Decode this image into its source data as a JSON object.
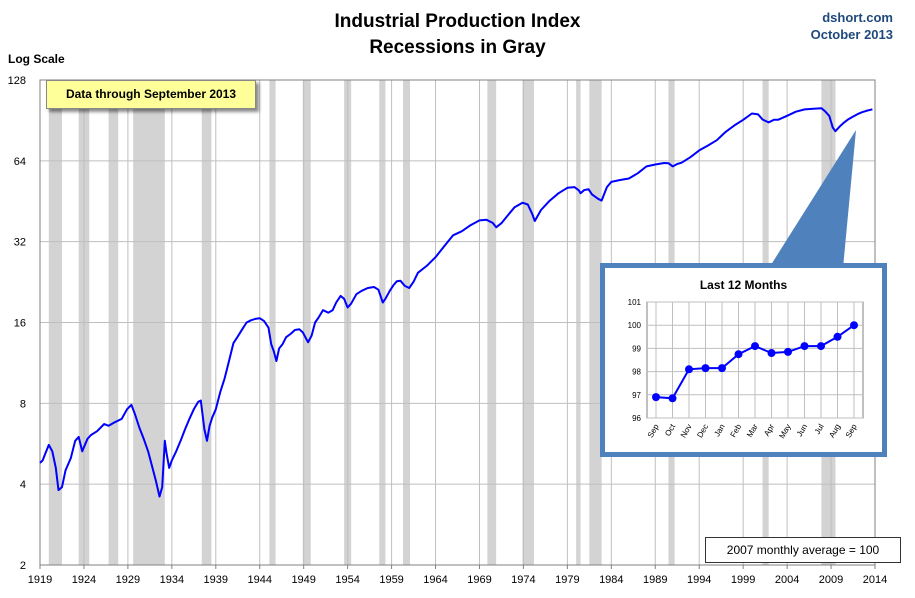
{
  "header": {
    "title_line1": "Industrial Production Index",
    "title_line2": "Recessions in Gray",
    "credit_site": "dshort.com",
    "credit_date": "October 2013"
  },
  "notes": {
    "data_through": "Data through September 2013",
    "baseline": "2007 monthly average = 100"
  },
  "colors": {
    "line": "#0000ff",
    "recession": "#d3d3d3",
    "grid": "#bfbfbf",
    "inset_border": "#4f81bd"
  },
  "chart_data": [
    {
      "type": "line",
      "title": "Industrial Production Index",
      "subtitle": "Recessions in Gray",
      "ylabel": "Log Scale",
      "y_scale": "log2",
      "ylim": [
        2,
        128
      ],
      "y_ticks": [
        "2",
        "4",
        "8",
        "16",
        "32",
        "64",
        "128"
      ],
      "xlim": [
        1919.0,
        2014.0
      ],
      "x_ticks": [
        "1919",
        "1924",
        "1929",
        "1934",
        "1939",
        "1944",
        "1949",
        "1954",
        "1959",
        "1964",
        "1969",
        "1974",
        "1979",
        "1984",
        "1989",
        "1994",
        "1999",
        "2004",
        "2009",
        "2014"
      ],
      "grid": true,
      "recessions": [
        [
          1920.0,
          1921.5
        ],
        [
          1923.4,
          1924.6
        ],
        [
          1926.8,
          1927.9
        ],
        [
          1929.6,
          1933.2
        ],
        [
          1937.4,
          1938.5
        ],
        [
          1945.1,
          1945.8
        ],
        [
          1948.9,
          1949.8
        ],
        [
          1953.6,
          1954.4
        ],
        [
          1957.6,
          1958.3
        ],
        [
          1960.3,
          1961.1
        ],
        [
          1969.9,
          1970.9
        ],
        [
          1973.9,
          1975.2
        ],
        [
          1980.0,
          1980.5
        ],
        [
          1981.5,
          1982.9
        ],
        [
          1990.5,
          1991.2
        ],
        [
          2001.2,
          2001.9
        ],
        [
          2007.9,
          2009.5
        ]
      ],
      "series": [
        {
          "x": [
            1919.0,
            1919.3,
            1919.6,
            1920.0,
            1920.4,
            1920.8,
            1921.1,
            1921.5,
            1921.9,
            1922.5,
            1923.0,
            1923.4,
            1923.8,
            1924.4,
            1924.8,
            1925.5,
            1926.3,
            1926.8,
            1927.5,
            1928.3,
            1928.9,
            1929.4,
            1929.8,
            1930.3,
            1930.8,
            1931.3,
            1931.8,
            1932.2,
            1932.6,
            1932.9,
            1933.2,
            1933.4,
            1933.7,
            1934.0,
            1934.5,
            1935.0,
            1935.5,
            1936.0,
            1936.5,
            1937.0,
            1937.3,
            1937.7,
            1938.0,
            1938.3,
            1938.6,
            1939.0,
            1939.5,
            1940.0,
            1940.5,
            1941.0,
            1941.5,
            1942.0,
            1942.5,
            1943.0,
            1943.5,
            1944.0,
            1944.5,
            1945.0,
            1945.3,
            1945.6,
            1945.9,
            1946.2,
            1946.6,
            1947.0,
            1947.5,
            1948.0,
            1948.5,
            1948.9,
            1949.5,
            1949.9,
            1950.3,
            1950.7,
            1951.2,
            1951.8,
            1952.3,
            1952.7,
            1953.2,
            1953.6,
            1954.0,
            1954.4,
            1955.0,
            1955.6,
            1956.3,
            1957.0,
            1957.5,
            1958.0,
            1958.3,
            1958.8,
            1959.2,
            1959.6,
            1960.0,
            1960.5,
            1961.0,
            1961.5,
            1962.0,
            1963.0,
            1964.0,
            1965.0,
            1966.0,
            1967.0,
            1968.0,
            1969.0,
            1969.8,
            1970.5,
            1970.9,
            1971.5,
            1972.2,
            1973.0,
            1973.9,
            1974.5,
            1975.0,
            1975.3,
            1976.0,
            1977.0,
            1978.0,
            1979.0,
            1979.8,
            1980.3,
            1980.5,
            1980.9,
            1981.4,
            1981.8,
            1982.5,
            1982.9,
            1983.5,
            1984.0,
            1985.0,
            1986.0,
            1987.0,
            1988.0,
            1989.0,
            1990.0,
            1990.5,
            1991.0,
            1991.5,
            1992.0,
            1993.0,
            1994.0,
            1995.0,
            1996.0,
            1997.0,
            1998.0,
            1999.0,
            2000.0,
            2000.7,
            2001.2,
            2001.9,
            2002.5,
            2003.0,
            2004.0,
            2005.0,
            2006.0,
            2007.0,
            2007.9,
            2008.3,
            2008.8,
            2009.2,
            2009.5,
            2010.0,
            2010.5,
            2011.0,
            2011.5,
            2012.0,
            2012.5,
            2013.0,
            2013.7
          ],
          "y": [
            4.8,
            4.9,
            5.2,
            5.6,
            5.3,
            4.6,
            3.8,
            3.9,
            4.5,
            5.0,
            5.8,
            6.0,
            5.3,
            5.9,
            6.1,
            6.3,
            6.7,
            6.6,
            6.8,
            7.0,
            7.6,
            7.9,
            7.3,
            6.5,
            5.9,
            5.3,
            4.6,
            4.1,
            3.6,
            3.9,
            5.8,
            5.2,
            4.6,
            4.9,
            5.3,
            5.8,
            6.4,
            7.0,
            7.6,
            8.1,
            8.2,
            6.4,
            5.8,
            6.6,
            7.1,
            7.6,
            8.8,
            9.9,
            11.5,
            13.4,
            14.2,
            15.1,
            16.0,
            16.3,
            16.5,
            16.6,
            16.2,
            15.3,
            13.3,
            12.5,
            11.5,
            12.8,
            13.3,
            14.1,
            14.5,
            15.0,
            15.1,
            14.7,
            13.5,
            14.3,
            16.0,
            16.7,
            17.8,
            17.4,
            17.8,
            19.0,
            20.1,
            19.6,
            18.2,
            18.8,
            20.4,
            21.0,
            21.5,
            21.7,
            21.2,
            19.0,
            19.6,
            21.0,
            22.0,
            22.8,
            22.9,
            21.9,
            21.5,
            22.7,
            24.5,
            26.0,
            28.0,
            30.8,
            33.8,
            35.0,
            36.9,
            38.4,
            38.6,
            37.6,
            36.2,
            37.5,
            40.0,
            43.0,
            44.7,
            44.0,
            40.6,
            38.2,
            42.0,
            45.5,
            48.5,
            50.8,
            51.1,
            49.7,
            48.5,
            49.8,
            50.2,
            48.0,
            46.2,
            45.5,
            51.1,
            53.4,
            54.3,
            55.0,
            57.5,
            61.0,
            62.0,
            62.8,
            62.7,
            61.0,
            62.3,
            63.0,
            66.0,
            70.0,
            73.0,
            76.4,
            82.0,
            86.7,
            91.0,
            96.0,
            95.3,
            91.2,
            89.0,
            91.0,
            91.1,
            94.2,
            97.5,
            99.5,
            100.0,
            100.5,
            98.0,
            94.0,
            85.0,
            82.5,
            86.0,
            89.0,
            91.5,
            93.5,
            95.5,
            97.0,
            98.2,
            99.6
          ]
        }
      ]
    },
    {
      "type": "line",
      "title": "Last 12 Months",
      "categories": [
        "Sep",
        "Oct",
        "Nov",
        "Dec",
        "Jan",
        "Feb",
        "Mar",
        "Apr",
        "May",
        "Jun",
        "Jul",
        "Aug",
        "Sep"
      ],
      "values": [
        96.9,
        96.85,
        98.1,
        98.15,
        98.15,
        98.75,
        99.1,
        98.8,
        98.85,
        99.1,
        99.1,
        99.5,
        100.0
      ],
      "ylim": [
        96,
        101
      ],
      "y_ticks": [
        "96",
        "97",
        "98",
        "99",
        "100",
        "101"
      ],
      "grid": true
    }
  ]
}
